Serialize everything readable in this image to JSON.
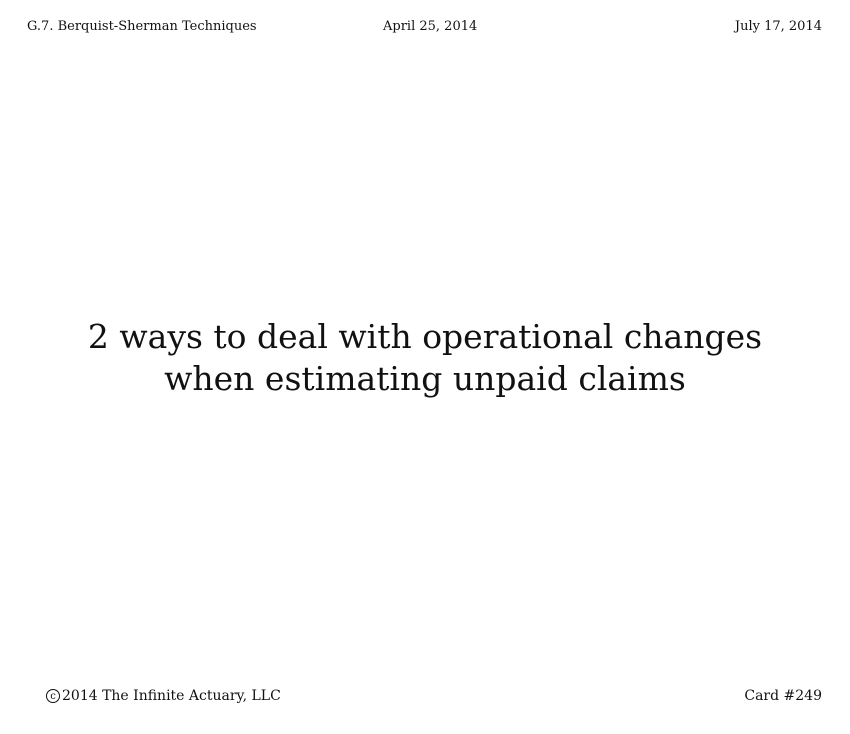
{
  "header": {
    "section": "G.7. Berquist-Sherman Techniques",
    "date_created": "April 25, 2014",
    "date_updated": "July 17, 2014"
  },
  "card": {
    "question": "2 ways to deal with operational changes when estimating unpaid claims"
  },
  "footer": {
    "copyright_symbol": "c",
    "copyright_text": "2014 The Infinite Actuary, LLC",
    "card_number": "Card #249"
  }
}
